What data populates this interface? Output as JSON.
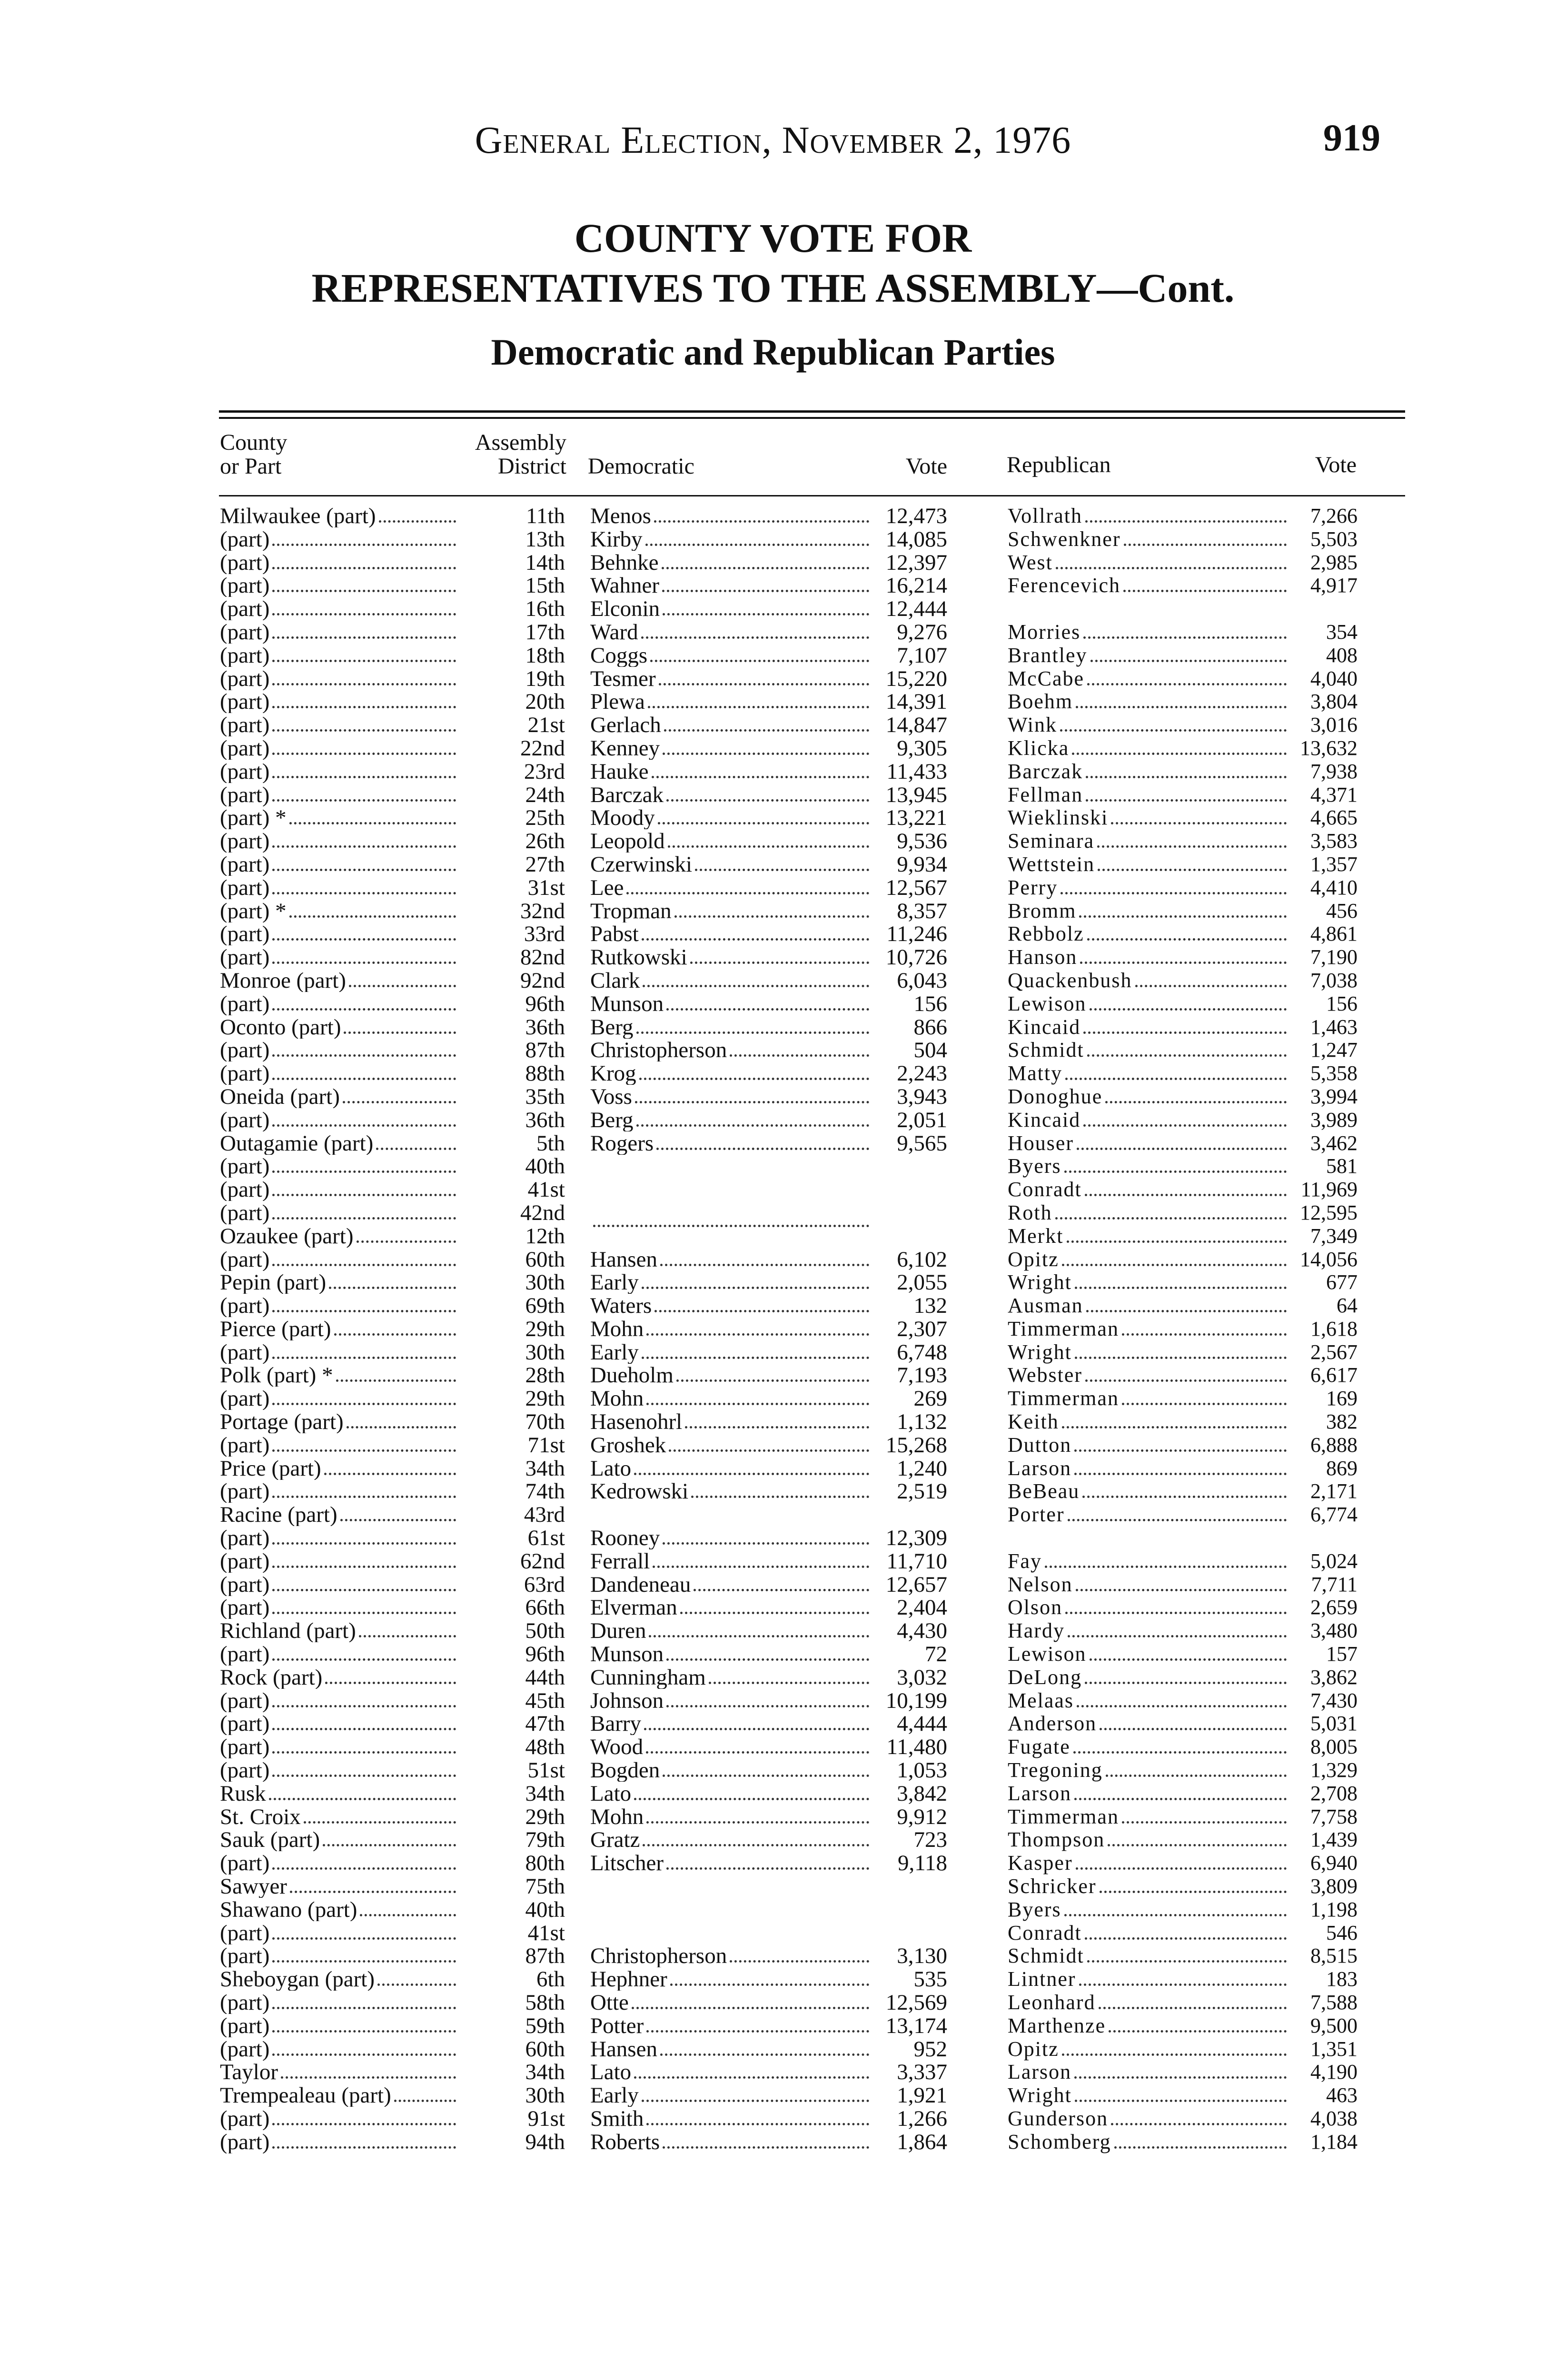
{
  "header": {
    "running_head": "General Election, November 2, 1976",
    "page_number": "919",
    "title_line1": "COUNTY VOTE FOR",
    "title_line2": "REPRESENTATIVES TO THE ASSEMBLY—Cont.",
    "subtitle": "Democratic and Republican Parties"
  },
  "table": {
    "columns": {
      "county_1": "County",
      "county_2": "or Part",
      "district_1": "Assembly",
      "district_2": "District",
      "democratic": "Democratic",
      "dem_vote": "Vote",
      "republican": "Republican",
      "rep_vote": "Vote"
    },
    "rows": [
      [
        "Milwaukee (part)",
        "11th",
        "Menos",
        "12,473",
        "Vollrath",
        "7,266"
      ],
      [
        "(part)",
        "13th",
        "Kirby",
        "14,085",
        "Schwenkner",
        "5,503"
      ],
      [
        "(part)",
        "14th",
        "Behnke",
        "12,397",
        "West",
        "2,985"
      ],
      [
        "(part)",
        "15th",
        "Wahner",
        "16,214",
        "Ferencevich",
        "4,917"
      ],
      [
        "(part)",
        "16th",
        "Elconin",
        "12,444",
        "",
        ""
      ],
      [
        "(part)",
        "17th",
        "Ward",
        "9,276",
        "Morries",
        "354"
      ],
      [
        "(part)",
        "18th",
        "Coggs",
        "7,107",
        "Brantley",
        "408"
      ],
      [
        "(part)",
        "19th",
        "Tesmer",
        "15,220",
        "McCabe",
        "4,040"
      ],
      [
        "(part)",
        "20th",
        "Plewa",
        "14,391",
        "Boehm",
        "3,804"
      ],
      [
        "(part)",
        "21st",
        "Gerlach",
        "14,847",
        "Wink",
        "3,016"
      ],
      [
        "(part)",
        "22nd",
        "Kenney",
        "9,305",
        "Klicka",
        "13,632"
      ],
      [
        "(part)",
        "23rd",
        "Hauke",
        "11,433",
        "Barczak",
        "7,938"
      ],
      [
        "(part)",
        "24th",
        "Barczak",
        "13,945",
        "Fellman",
        "4,371"
      ],
      [
        "(part) *",
        "25th",
        "Moody",
        "13,221",
        "Wieklinski",
        "4,665"
      ],
      [
        "(part)",
        "26th",
        "Leopold",
        "9,536",
        "Seminara",
        "3,583"
      ],
      [
        "(part)",
        "27th",
        "Czerwinski",
        "9,934",
        "Wettstein",
        "1,357"
      ],
      [
        "(part)",
        "31st",
        "Lee",
        "12,567",
        "Perry",
        "4,410"
      ],
      [
        "(part) *",
        "32nd",
        "Tropman",
        "8,357",
        "Bromm",
        "456"
      ],
      [
        "(part)",
        "33rd",
        "Pabst",
        "11,246",
        "Rebbolz",
        "4,861"
      ],
      [
        "(part)",
        "82nd",
        "Rutkowski",
        "10,726",
        "Hanson",
        "7,190"
      ],
      [
        "Monroe (part)",
        "92nd",
        "Clark",
        "6,043",
        "Quackenbush",
        "7,038"
      ],
      [
        "(part)",
        "96th",
        "Munson",
        "156",
        "Lewison",
        "156"
      ],
      [
        "Oconto (part)",
        "36th",
        "Berg",
        "866",
        "Kincaid",
        "1,463"
      ],
      [
        "(part)",
        "87th",
        "Christopherson",
        "504",
        "Schmidt",
        "1,247"
      ],
      [
        "(part)",
        "88th",
        "Krog",
        "2,243",
        "Matty",
        "5,358"
      ],
      [
        "Oneida (part)",
        "35th",
        "Voss",
        "3,943",
        "Donoghue",
        "3,994"
      ],
      [
        "(part)",
        "36th",
        "Berg",
        "2,051",
        "Kincaid",
        "3,989"
      ],
      [
        "Outagamie (part)",
        "5th",
        "Rogers",
        "9,565",
        "Houser",
        "3,462"
      ],
      [
        "(part)",
        "40th",
        "",
        "",
        "Byers",
        "581"
      ],
      [
        "(part)",
        "41st",
        "",
        "",
        "Conradt",
        "11,969"
      ],
      [
        "(part)",
        "42nd",
        "",
        "",
        "Roth",
        "12,595"
      ],
      [
        "Ozaukee (part)",
        "12th",
        "",
        "",
        "Merkt",
        "7,349"
      ],
      [
        "(part)",
        "60th",
        "Hansen",
        "6,102",
        "Opitz",
        "14,056"
      ],
      [
        "Pepin (part)",
        "30th",
        "Early",
        "2,055",
        "Wright",
        "677"
      ],
      [
        "(part)",
        "69th",
        "Waters",
        "132",
        "Ausman",
        "64"
      ],
      [
        "Pierce (part)",
        "29th",
        "Mohn",
        "2,307",
        "Timmerman",
        "1,618"
      ],
      [
        "(part)",
        "30th",
        "Early",
        "6,748",
        "Wright",
        "2,567"
      ],
      [
        "Polk (part) *",
        "28th",
        "Dueholm",
        "7,193",
        "Webster",
        "6,617"
      ],
      [
        "(part)",
        "29th",
        "Mohn",
        "269",
        "Timmerman",
        "169"
      ],
      [
        "Portage (part)",
        "70th",
        "Hasenohrl",
        "1,132",
        "Keith",
        "382"
      ],
      [
        "(part)",
        "71st",
        "Groshek",
        "15,268",
        "Dutton",
        "6,888"
      ],
      [
        "Price (part)",
        "34th",
        "Lato",
        "1,240",
        "Larson",
        "869"
      ],
      [
        "(part)",
        "74th",
        "Kedrowski",
        "2,519",
        "BeBeau",
        "2,171"
      ],
      [
        "Racine (part)",
        "43rd",
        "",
        "",
        "Porter",
        "6,774"
      ],
      [
        "(part)",
        "61st",
        "Rooney",
        "12,309",
        "",
        ""
      ],
      [
        "(part)",
        "62nd",
        "Ferrall",
        "11,710",
        "Fay",
        "5,024"
      ],
      [
        "(part)",
        "63rd",
        "Dandeneau",
        "12,657",
        "Nelson",
        "7,711"
      ],
      [
        "(part)",
        "66th",
        "Elverman",
        "2,404",
        "Olson",
        "2,659"
      ],
      [
        "Richland (part)",
        "50th",
        "Duren",
        "4,430",
        "Hardy",
        "3,480"
      ],
      [
        "(part)",
        "96th",
        "Munson",
        "72",
        "Lewison",
        "157"
      ],
      [
        "Rock (part)",
        "44th",
        "Cunningham",
        "3,032",
        "DeLong",
        "3,862"
      ],
      [
        "(part)",
        "45th",
        "Johnson",
        "10,199",
        "Melaas",
        "7,430"
      ],
      [
        "(part)",
        "47th",
        "Barry",
        "4,444",
        "Anderson",
        "5,031"
      ],
      [
        "(part)",
        "48th",
        "Wood",
        "11,480",
        "Fugate",
        "8,005"
      ],
      [
        "(part)",
        "51st",
        "Bogden",
        "1,053",
        "Tregoning",
        "1,329"
      ],
      [
        "Rusk",
        "34th",
        "Lato",
        "3,842",
        "Larson",
        "2,708"
      ],
      [
        "St. Croix",
        "29th",
        "Mohn",
        "9,912",
        "Timmerman",
        "7,758"
      ],
      [
        "Sauk (part)",
        "79th",
        "Gratz",
        "723",
        "Thompson",
        "1,439"
      ],
      [
        "(part)",
        "80th",
        "Litscher",
        "9,118",
        "Kasper",
        "6,940"
      ],
      [
        "Sawyer",
        "75th",
        "",
        "",
        "Schricker",
        "3,809"
      ],
      [
        "Shawano (part)",
        "40th",
        "",
        "",
        "Byers",
        "1,198"
      ],
      [
        "(part)",
        "41st",
        "",
        "",
        "Conradt",
        "546"
      ],
      [
        "(part)",
        "87th",
        "Christopherson",
        "3,130",
        "Schmidt",
        "8,515"
      ],
      [
        "Sheboygan (part)",
        "6th",
        "Hephner",
        "535",
        "Lintner",
        "183"
      ],
      [
        "(part)",
        "58th",
        "Otte",
        "12,569",
        "Leonhard",
        "7,588"
      ],
      [
        "(part)",
        "59th",
        "Potter",
        "13,174",
        "Marthenze",
        "9,500"
      ],
      [
        "(part)",
        "60th",
        "Hansen",
        "952",
        "Opitz",
        "1,351"
      ],
      [
        "Taylor",
        "34th",
        "Lato",
        "3,337",
        "Larson",
        "4,190"
      ],
      [
        "Trempealeau (part)",
        "30th",
        "Early",
        "1,921",
        "Wright",
        "463"
      ],
      [
        "(part)",
        "91st",
        "Smith",
        "1,266",
        "Gunderson",
        "4,038"
      ],
      [
        "(part)",
        "94th",
        "Roberts",
        "1,864",
        "Schomberg",
        "1,184"
      ]
    ]
  }
}
